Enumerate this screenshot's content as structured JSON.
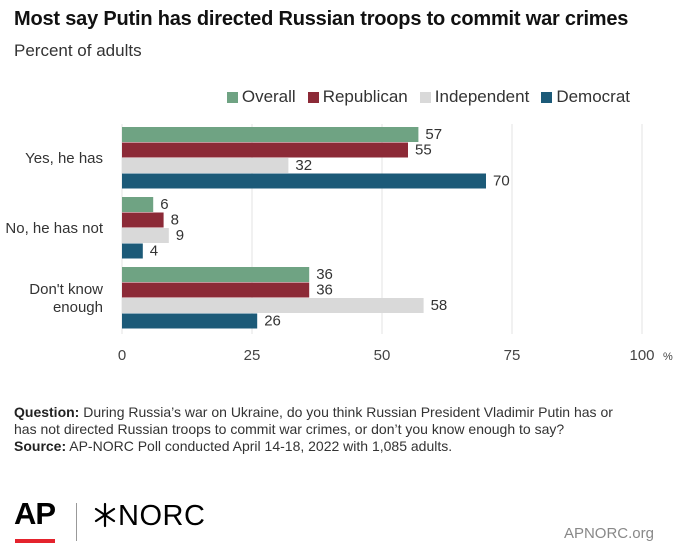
{
  "chart_data": {
    "type": "bar",
    "orientation": "horizontal",
    "title": "Most say Putin has directed Russian troops to commit war crimes",
    "subtitle": "Percent of adults",
    "categories": [
      "Yes, he has",
      "No, he has not",
      "Don't know enough"
    ],
    "series": [
      {
        "name": "Overall",
        "color": "#6fa383",
        "values": [
          57,
          6,
          36
        ]
      },
      {
        "name": "Republican",
        "color": "#8c2a37",
        "values": [
          55,
          8,
          36
        ]
      },
      {
        "name": "Independent",
        "color": "#d9d9d9",
        "values": [
          32,
          9,
          58
        ]
      },
      {
        "name": "Democrat",
        "color": "#1c5a78",
        "values": [
          70,
          4,
          26
        ]
      }
    ],
    "xlim": [
      0,
      100
    ],
    "xticks": [
      "0",
      "25",
      "50",
      "75",
      "100"
    ],
    "x_unit": "%",
    "grid": true,
    "legend_position": "top-right"
  },
  "footnote": {
    "question_label": "Question:",
    "question_text": " During Russia’s war on Ukraine, do you think Russian President Vladimir Putin has or has not directed Russian troops to commit war crimes, or don’t you know enough to say?",
    "source_label": "Source:",
    "source_text": " AP-NORC Poll conducted April 14-18, 2022 with 1,085 adults."
  },
  "branding": {
    "ap_logo": "AP",
    "norc_logo": "NORC",
    "site": "APNORC.org"
  }
}
